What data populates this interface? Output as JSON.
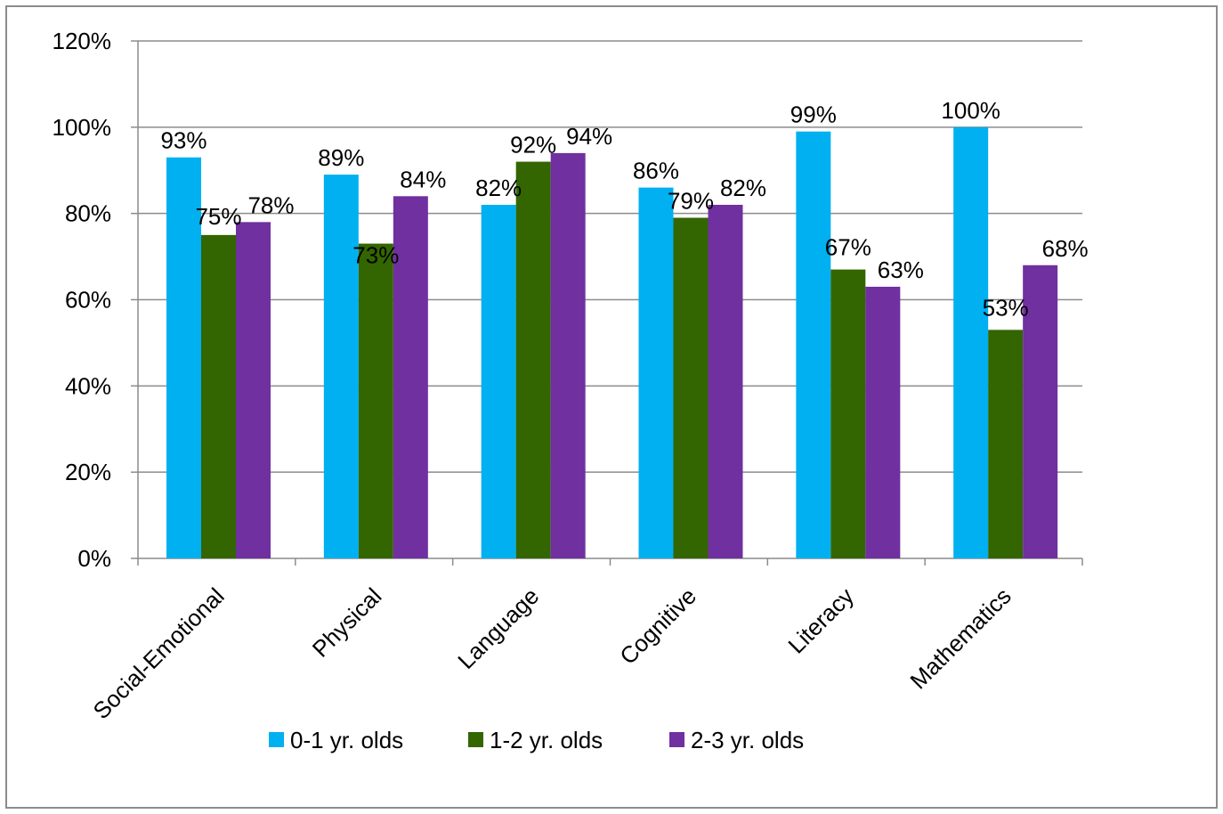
{
  "chart_data": {
    "type": "bar",
    "categories": [
      "Social-Emotional",
      "Physical",
      "Language",
      "Cognitive",
      "Literacy",
      "Mathematics"
    ],
    "series": [
      {
        "name": "0-1 yr. olds",
        "values": [
          93,
          89,
          82,
          86,
          99,
          100
        ],
        "labels": [
          "93%",
          "89%",
          "82%",
          "86%",
          "99%",
          "100%"
        ],
        "color": "#00b0f0"
      },
      {
        "name": "1-2 yr. olds",
        "values": [
          75,
          73,
          92,
          79,
          67,
          53
        ],
        "labels": [
          "75%",
          "73%",
          "92%",
          "79%",
          "67%",
          "53%"
        ],
        "color": "#336600"
      },
      {
        "name": "2-3 yr. olds",
        "values": [
          78,
          84,
          94,
          82,
          63,
          68
        ],
        "labels": [
          "78%",
          "84%",
          "94%",
          "82%",
          "63%",
          "68%"
        ],
        "color": "#7030a0"
      }
    ],
    "yticks": [
      0,
      20,
      40,
      60,
      80,
      100,
      120
    ],
    "ytick_labels": [
      "0%",
      "20%",
      "40%",
      "60%",
      "80%",
      "100%",
      "120%"
    ],
    "ylim": [
      0,
      120
    ],
    "title": "",
    "xlabel": "",
    "ylabel": "",
    "grid": true,
    "legend_position": "bottom"
  }
}
